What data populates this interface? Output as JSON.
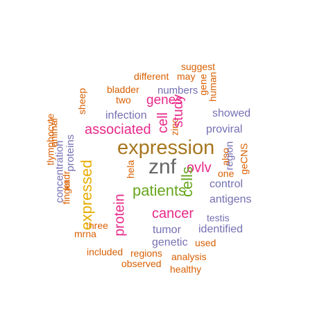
{
  "words": [
    {
      "text": "zinc",
      "color": "#d95f02",
      "rot": -90
    },
    {
      "text": "hela",
      "color": "#d95f02",
      "rot": -90
    },
    {
      "text": "kadr",
      "color": "#d95f02",
      "rot": -90
    },
    {
      "text": "one",
      "color": "#d95f02",
      "rot": 0
    },
    {
      "text": "three",
      "color": "#d95f02",
      "rot": 0
    },
    {
      "text": "two",
      "color": "#d95f02",
      "rot": 0
    },
    {
      "text": "geCNS",
      "color": "#d95f02",
      "rot": -90
    },
    {
      "text": "animal",
      "color": "#d95f02",
      "rot": -90
    },
    {
      "text": "finger",
      "color": "#d95f02",
      "rot": -90
    },
    {
      "text": "mrna",
      "color": "#d95f02",
      "rot": 0
    },
    {
      "text": "gene",
      "color": "#d95f02",
      "rot": -90
    },
    {
      "text": "may",
      "color": "#d95f02",
      "rot": 0
    },
    {
      "text": "tlymphocyte",
      "color": "#d95f02",
      "rot": -90
    },
    {
      "text": "different",
      "color": "#d95f02",
      "rot": 0
    },
    {
      "text": "suggest",
      "color": "#d95f02",
      "rot": 0
    },
    {
      "text": "human",
      "color": "#d95f02",
      "rot": -90
    },
    {
      "text": "bladder",
      "color": "#d95f02",
      "rot": 0
    },
    {
      "text": "sheep",
      "color": "#d95f02",
      "rot": -90
    },
    {
      "text": "also",
      "color": "#d95f02",
      "rot": -90
    },
    {
      "text": "included",
      "color": "#d95f02",
      "rot": 0
    },
    {
      "text": "regions",
      "color": "#d95f02",
      "rot": 0
    },
    {
      "text": "used",
      "color": "#d95f02",
      "rot": 0
    },
    {
      "text": "analysis",
      "color": "#d95f02",
      "rot": 0
    },
    {
      "text": "observed",
      "color": "#d95f02",
      "rot": 0
    },
    {
      "text": "healthy",
      "color": "#d95f02",
      "rot": 0
    },
    {
      "text": "testis",
      "color": "#7570b3",
      "rot": 0
    },
    {
      "text": "region",
      "color": "#7570b3",
      "rot": -90
    },
    {
      "text": "numbers",
      "color": "#7570b3",
      "rot": 0
    },
    {
      "text": "showed",
      "color": "#7570b3",
      "rot": 0
    },
    {
      "text": "infection",
      "color": "#7570b3",
      "rot": 0
    },
    {
      "text": "proviral",
      "color": "#7570b3",
      "rot": 0
    },
    {
      "text": "proteins",
      "color": "#7570b3",
      "rot": -90
    },
    {
      "text": "concentration",
      "color": "#7570b3",
      "rot": -90
    },
    {
      "text": "control",
      "color": "#7570b3",
      "rot": 0
    },
    {
      "text": "antigens",
      "color": "#7570b3",
      "rot": 0
    },
    {
      "text": "tumor",
      "color": "#7570b3",
      "rot": 0
    },
    {
      "text": "identified",
      "color": "#7570b3",
      "rot": 0
    },
    {
      "text": "genetic",
      "color": "#7570b3",
      "rot": 0
    },
    {
      "text": "genes",
      "color": "#e7298a",
      "rot": 0
    },
    {
      "text": "study",
      "color": "#e7298a",
      "rot": -90
    },
    {
      "text": "cell",
      "color": "#e7298a",
      "rot": -90
    },
    {
      "text": "associated",
      "color": "#e7298a",
      "rot": 0
    },
    {
      "text": "ovlv",
      "color": "#e7298a",
      "rot": 0
    },
    {
      "text": "cancer",
      "color": "#e7298a",
      "rot": 0
    },
    {
      "text": "protein",
      "color": "#e7298a",
      "rot": -90
    },
    {
      "text": "cells",
      "color": "#66a61e",
      "rot": -90
    },
    {
      "text": "patients",
      "color": "#66a61e",
      "rot": 0
    },
    {
      "text": "expressed",
      "color": "#e6ab02",
      "rot": -90
    },
    {
      "text": "expression",
      "color": "#a6761d",
      "rot": 0
    },
    {
      "text": "znf",
      "color": "#666666",
      "rot": 0
    }
  ]
}
